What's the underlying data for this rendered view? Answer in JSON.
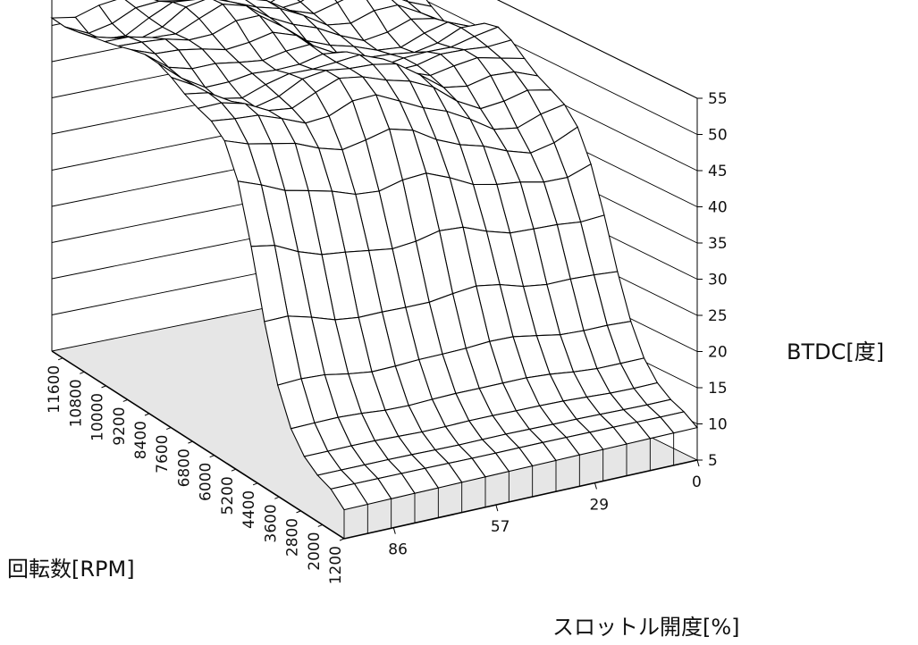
{
  "chart_data": {
    "type": "surface3d",
    "title": "",
    "zlabel": "BTDC[度]",
    "rpm_label": "回転数[RPM]",
    "throttle_label": "スロットル開度[%]",
    "z_ticks": [
      "55",
      "50",
      "45",
      "40",
      "35",
      "30",
      "25",
      "20",
      "15",
      "10",
      "5"
    ],
    "zlim": [
      5,
      55
    ],
    "rpm_ticks": [
      "11600",
      "10800",
      "10000",
      "9200",
      "8400",
      "7600",
      "6800",
      "6000",
      "5200",
      "4400",
      "3600",
      "2800",
      "2000",
      "1200"
    ],
    "rpm_range": [
      1200,
      12000
    ],
    "throttle_ticks": [
      "0",
      "29",
      "57",
      "86"
    ],
    "throttle_range": [
      0,
      100
    ],
    "grid_columns": 15,
    "grid_rows": 22,
    "approx_surface": {
      "low_rpm_timing_deg": 10,
      "high_rpm_low_throttle_timing_deg": 53,
      "high_rpm_full_throttle_timing_deg": 44,
      "step_rpm": 4400
    },
    "floor_color": "#e6e6e6",
    "mesh_color": "#000000",
    "grid": true
  }
}
